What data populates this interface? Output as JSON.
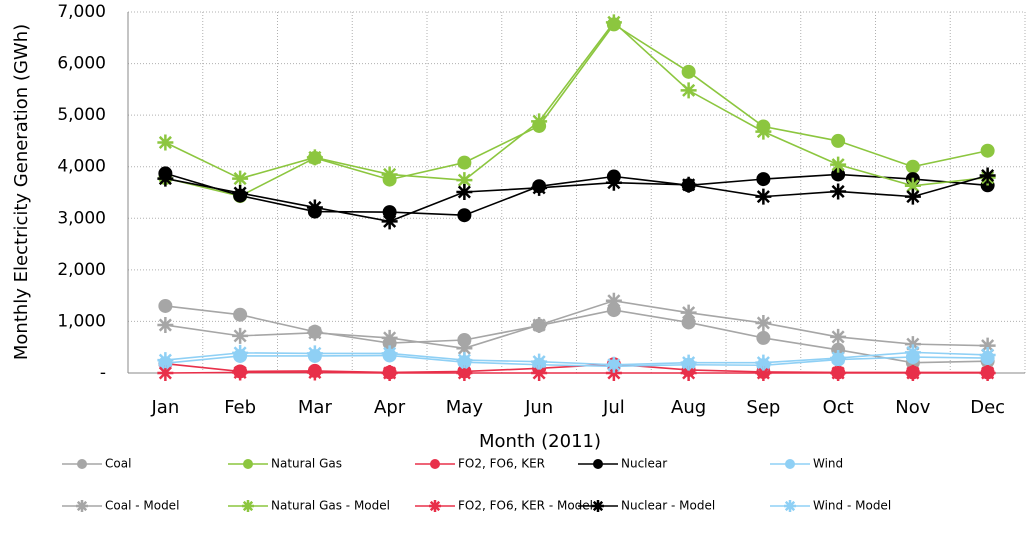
{
  "chart_data": {
    "type": "line",
    "xlabel": "Month (2011)",
    "ylabel": "Monthly Electricity Generation (GWh)",
    "categories": [
      "Jan",
      "Feb",
      "Mar",
      "Apr",
      "May",
      "Jun",
      "Jul",
      "Aug",
      "Sep",
      "Oct",
      "Nov",
      "Dec"
    ],
    "ylim": [
      0,
      7000
    ],
    "yticks": [
      {
        "value": 0,
        "label": "-"
      },
      {
        "value": 1000,
        "label": "1,000"
      },
      {
        "value": 2000,
        "label": "2,000"
      },
      {
        "value": 3000,
        "label": "3,000"
      },
      {
        "value": 4000,
        "label": "4,000"
      },
      {
        "value": 5000,
        "label": "5,000"
      },
      {
        "value": 6000,
        "label": "6,000"
      },
      {
        "value": 7000,
        "label": "7,000"
      }
    ],
    "grid": true,
    "legend": "bottom",
    "series": [
      {
        "name": "Coal",
        "color": "#a6a6a6",
        "marker": "circle",
        "values": [
          1300,
          1130,
          800,
          580,
          640,
          920,
          1220,
          980,
          680,
          450,
          200,
          230
        ]
      },
      {
        "name": "Natural Gas",
        "color": "#8cc63f",
        "marker": "circle",
        "values": [
          3780,
          3430,
          4170,
          3750,
          4080,
          4790,
          6760,
          5840,
          4780,
          4500,
          4000,
          4310
        ]
      },
      {
        "name": "FO2, FO6, KER",
        "color": "#e8304a",
        "marker": "circle",
        "values": [
          180,
          30,
          40,
          10,
          30,
          90,
          170,
          60,
          20,
          10,
          10,
          10
        ]
      },
      {
        "name": "Nuclear",
        "color": "#000000",
        "marker": "circle",
        "values": [
          3870,
          3440,
          3130,
          3120,
          3060,
          3620,
          3810,
          3640,
          3760,
          3850,
          3760,
          3640
        ]
      },
      {
        "name": "Wind",
        "color": "#8fd0f5",
        "marker": "circle",
        "values": [
          190,
          330,
          330,
          340,
          210,
          160,
          130,
          160,
          150,
          260,
          310,
          290
        ]
      },
      {
        "name": "Coal - Model",
        "color": "#a6a6a6",
        "marker": "star",
        "values": [
          930,
          720,
          780,
          680,
          480,
          930,
          1400,
          1170,
          970,
          700,
          560,
          530
        ]
      },
      {
        "name": "Natural Gas - Model",
        "color": "#8cc63f",
        "marker": "star",
        "values": [
          4470,
          3770,
          4180,
          3850,
          3740,
          4880,
          6800,
          5480,
          4680,
          4040,
          3630,
          3790
        ]
      },
      {
        "name": "FO2, FO6, KER - Model",
        "color": "#e8304a",
        "marker": "star",
        "values": [
          0,
          10,
          10,
          0,
          0,
          0,
          0,
          0,
          0,
          0,
          0,
          0
        ]
      },
      {
        "name": "Nuclear - Model",
        "color": "#000000",
        "marker": "star",
        "values": [
          3770,
          3490,
          3210,
          2940,
          3510,
          3590,
          3690,
          3650,
          3420,
          3520,
          3420,
          3830
        ]
      },
      {
        "name": "Wind - Model",
        "color": "#8fd0f5",
        "marker": "star",
        "values": [
          250,
          390,
          380,
          380,
          250,
          220,
          160,
          200,
          200,
          290,
          400,
          350
        ]
      }
    ]
  }
}
